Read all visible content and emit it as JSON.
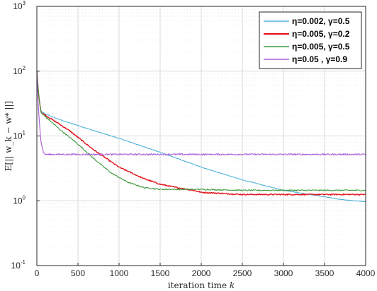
{
  "chart_data": {
    "type": "line",
    "title": "",
    "xlabel": "iteration time",
    "xlabel_var": "k",
    "ylabel": "E[|| w_k − w* ||]",
    "xlim": [
      0,
      4000
    ],
    "ylim": [
      0.1,
      1000
    ],
    "yscale": "log",
    "grid": true,
    "legend_position": "top-right",
    "x_ticks": [
      "0",
      "500",
      "1000",
      "1500",
      "2000",
      "2500",
      "3000",
      "3500",
      "4000"
    ],
    "y_tick_base": "10",
    "y_tick_exponents": [
      "-1",
      "0",
      "1",
      "2",
      "3"
    ],
    "series": [
      {
        "name": "η=0.002, γ=0.5",
        "color": "#4db3d9",
        "x": [
          0,
          20,
          50,
          100,
          200,
          300,
          500,
          700,
          1000,
          1500,
          2000,
          2500,
          3000,
          3500,
          3700,
          3850,
          4000
        ],
        "y": [
          100,
          45,
          24,
          22,
          19.5,
          17.5,
          14.5,
          12,
          9.2,
          5.6,
          3.3,
          2.1,
          1.45,
          1.15,
          1.05,
          1.0,
          0.97
        ]
      },
      {
        "name": "η=0.005, γ=0.2",
        "color": "#e3131b",
        "x": [
          0,
          20,
          50,
          100,
          200,
          300,
          400,
          500,
          700,
          1000,
          1300,
          1500,
          1700,
          1900,
          2000,
          2500,
          3000,
          3500,
          4000
        ],
        "y": [
          100,
          45,
          23,
          21,
          17.5,
          14.5,
          12,
          9.5,
          6,
          3.3,
          2.2,
          1.8,
          1.6,
          1.45,
          1.35,
          1.25,
          1.25,
          1.25,
          1.25
        ]
      },
      {
        "name": "η=0.005, γ=0.5",
        "color": "#3d9a3d",
        "x": [
          0,
          20,
          50,
          100,
          200,
          300,
          400,
          500,
          700,
          900,
          1100,
          1300,
          1500,
          2000,
          2500,
          3000,
          3500,
          4000
        ],
        "y": [
          100,
          45,
          23,
          20,
          15.5,
          12,
          9.5,
          7.5,
          4.4,
          2.7,
          1.95,
          1.6,
          1.5,
          1.5,
          1.45,
          1.45,
          1.45,
          1.45
        ]
      },
      {
        "name": "η=0.05  , γ=0.9",
        "color": "#a85ad6",
        "x": [
          0,
          20,
          50,
          80,
          100,
          150,
          500,
          1000,
          1500,
          2000,
          2500,
          3000,
          3500,
          4000
        ],
        "y": [
          100,
          25,
          8,
          5.6,
          5.2,
          5.2,
          5.2,
          5.2,
          5.2,
          5.2,
          5.2,
          5.2,
          5.2,
          5.2
        ]
      }
    ]
  }
}
